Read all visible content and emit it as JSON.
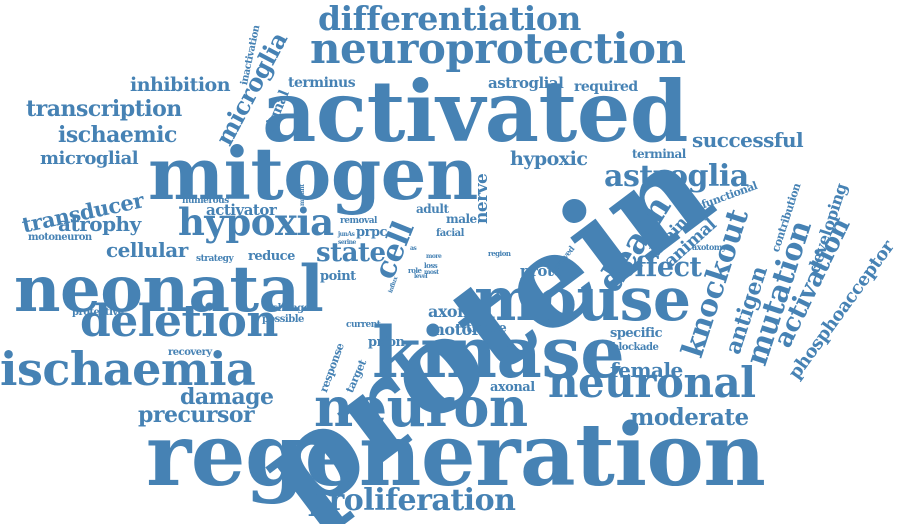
{
  "word_cloud": {
    "color": "#4682b4",
    "words": [
      "protein",
      "regeneration",
      "activated",
      "mitogen",
      "kinase",
      "neonatal",
      "mouse",
      "neuron",
      "neuroprotection",
      "neuronal",
      "hypoxia",
      "deletion",
      "ischaemia",
      "differentiation",
      "proliferation",
      "knockout",
      "death",
      "astroglia",
      "effect",
      "mutation",
      "activation",
      "antigen",
      "moderate",
      "damage",
      "microglia",
      "precursor",
      "cell",
      "state",
      "transcription",
      "ischaemic",
      "transducer",
      "microglial",
      "cellular",
      "successful",
      "inhibition",
      "phosphoacceptor",
      "atrophy",
      "female",
      "hypoxic",
      "axon",
      "nerve",
      "animal",
      "brain",
      "developing",
      "astroglial",
      "reduce",
      "proto",
      "activator",
      "motor",
      "terminus",
      "tissue",
      "signal",
      "prion",
      "axonal",
      "specific",
      "required",
      "point",
      "contribution",
      "terminal",
      "functional",
      "inactivation",
      "response",
      "target",
      "protective",
      "recovery",
      "blockade",
      "change",
      "possible",
      "current",
      "numerous",
      "strategy",
      "motoneuron",
      "male",
      "adult",
      "facial",
      "prpc",
      "removal",
      "involved",
      "axotomy",
      "region",
      "loss",
      "role",
      "mutant",
      "junAs",
      "serine",
      "level",
      "more",
      "most",
      "influx",
      "as"
    ]
  }
}
